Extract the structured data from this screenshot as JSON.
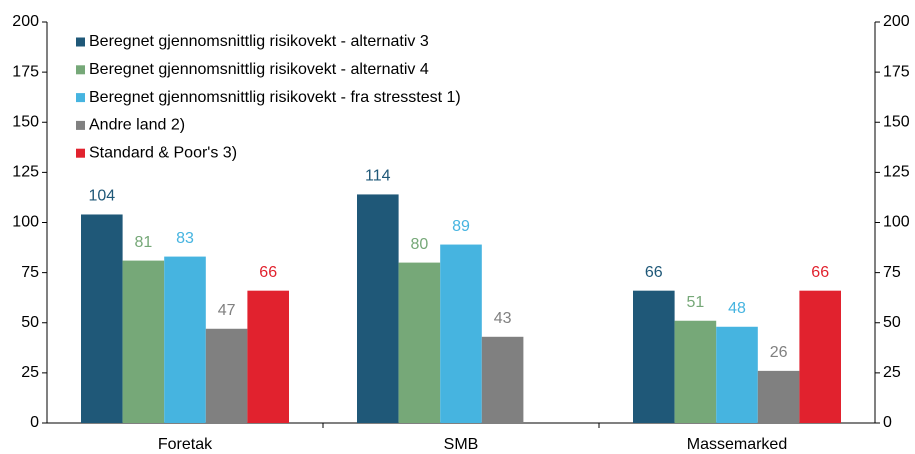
{
  "chart_data": {
    "type": "bar",
    "categories": [
      "Foretak",
      "SMB",
      "Massemarked"
    ],
    "series": [
      {
        "name": "Beregnet gjennomsnittlig risikovekt - alternativ 3",
        "color": "#1f5878",
        "values": [
          104,
          114,
          66
        ]
      },
      {
        "name": "Beregnet gjennomsnittlig risikovekt - alternativ 4",
        "color": "#76a878",
        "values": [
          81,
          80,
          51
        ]
      },
      {
        "name": "Beregnet gjennomsnittlig risikovekt - fra stresstest 1)",
        "color": "#46b4e0",
        "values": [
          83,
          89,
          48
        ]
      },
      {
        "name": "Andre land 2)",
        "color": "#808080",
        "values": [
          47,
          43,
          26
        ]
      },
      {
        "name": "Standard & Poor's 3)",
        "color": "#e1222e",
        "values": [
          66,
          null,
          66
        ]
      }
    ],
    "ylim": [
      0,
      200
    ],
    "yticks": [
      0,
      25,
      50,
      75,
      100,
      125,
      150,
      175,
      200
    ],
    "y2lim": [
      0,
      200
    ],
    "y2ticks": [
      0,
      25,
      50,
      75,
      100,
      125,
      150,
      175,
      200
    ],
    "legend": "upper left"
  }
}
